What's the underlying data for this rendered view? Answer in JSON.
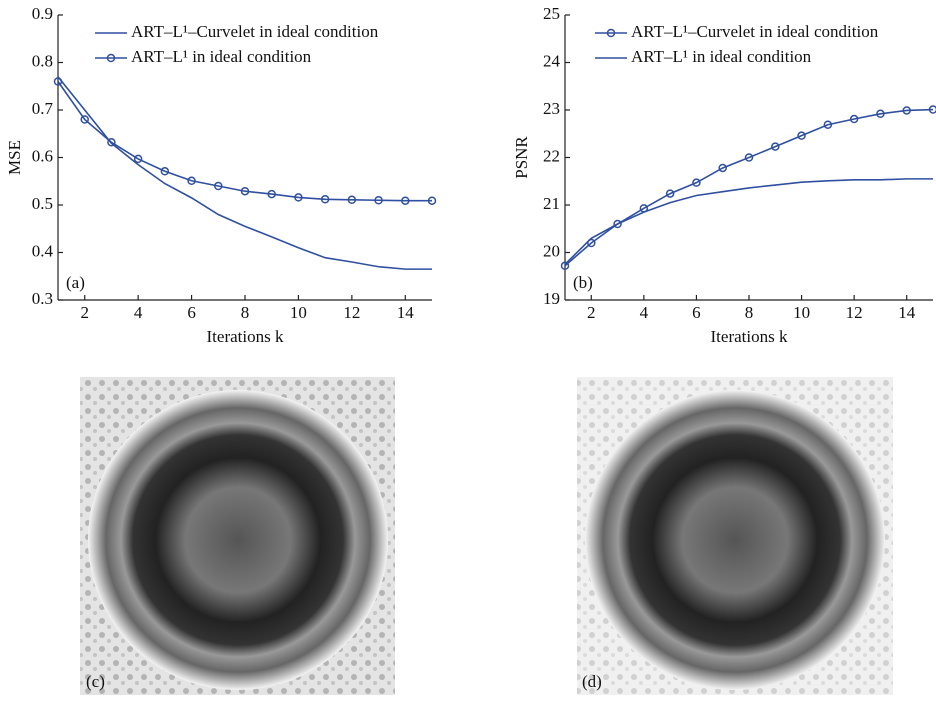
{
  "chart_data": [
    {
      "type": "line",
      "ylabel": "MSE",
      "xlabel": "Iterations k",
      "panel_label": "(a)",
      "x": [
        1,
        2,
        3,
        4,
        5,
        6,
        7,
        8,
        9,
        10,
        11,
        12,
        13,
        14,
        15
      ],
      "xlim": [
        1,
        15
      ],
      "xticks": [
        2,
        4,
        6,
        8,
        10,
        12,
        14
      ],
      "ylim": [
        0.3,
        0.9
      ],
      "yticks": [
        0.3,
        0.4,
        0.5,
        0.6,
        0.7,
        0.8,
        0.9
      ],
      "series": [
        {
          "name": "ART–L¹–Curvelet in ideal condition",
          "color": "#2f4fa0",
          "marker": false,
          "values": [
            0.77,
            0.7,
            0.63,
            0.585,
            0.545,
            0.515,
            0.48,
            0.455,
            0.433,
            0.41,
            0.389,
            0.38,
            0.37,
            0.365,
            0.365
          ]
        },
        {
          "name": "ART–L¹ in ideal condition",
          "color": "#2f4fa0",
          "marker": true,
          "values": [
            0.76,
            0.68,
            0.632,
            0.597,
            0.571,
            0.551,
            0.54,
            0.529,
            0.523,
            0.516,
            0.512,
            0.511,
            0.51,
            0.509,
            0.509
          ]
        }
      ]
    },
    {
      "type": "line",
      "ylabel": "PSNR",
      "xlabel": "Iterations k",
      "panel_label": "(b)",
      "x": [
        1,
        2,
        3,
        4,
        5,
        6,
        7,
        8,
        9,
        10,
        11,
        12,
        13,
        14,
        15
      ],
      "xlim": [
        1,
        15
      ],
      "xticks": [
        2,
        4,
        6,
        8,
        10,
        12,
        14
      ],
      "ylim": [
        19,
        25
      ],
      "yticks": [
        19,
        20,
        21,
        22,
        23,
        24,
        25
      ],
      "series": [
        {
          "name": "ART–L¹–Curvelet in ideal condition",
          "color": "#2f4fa0",
          "marker": true,
          "values": [
            19.72,
            20.2,
            20.6,
            20.93,
            21.24,
            21.47,
            21.78,
            22.0,
            22.23,
            22.46,
            22.69,
            22.81,
            22.92,
            22.99,
            23.01
          ]
        },
        {
          "name": "ART–L¹ in ideal condition",
          "color": "#2f4fa0",
          "marker": false,
          "values": [
            19.75,
            20.3,
            20.6,
            20.85,
            21.05,
            21.2,
            21.28,
            21.36,
            21.42,
            21.48,
            21.51,
            21.53,
            21.53,
            21.55,
            21.55
          ]
        }
      ]
    }
  ],
  "images": [
    {
      "label": "(c)"
    },
    {
      "label": "(d)"
    }
  ]
}
